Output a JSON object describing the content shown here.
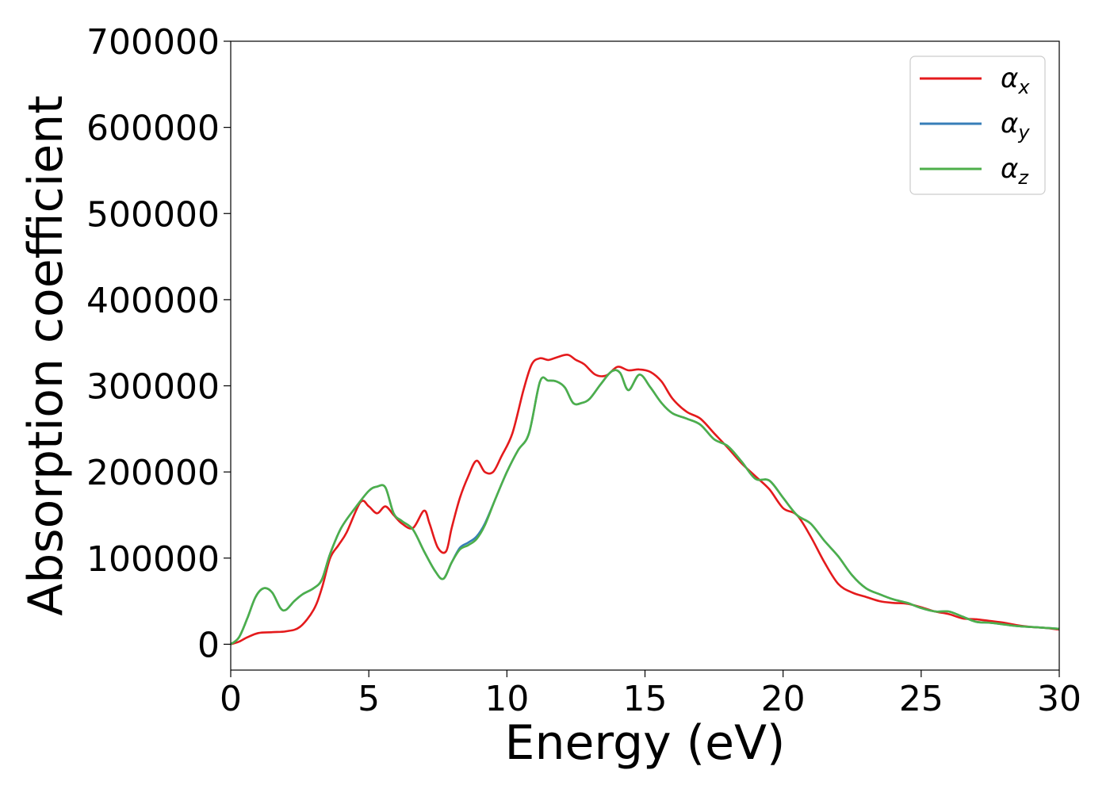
{
  "chart_data": {
    "type": "line",
    "xlabel": "Energy (eV)",
    "ylabel": "Absorption coefficient",
    "xlim": [
      0,
      30
    ],
    "ylim": [
      -30000,
      700000
    ],
    "xticks": [
      0,
      5,
      10,
      15,
      20,
      25,
      30
    ],
    "xtick_labels": [
      "0",
      "5",
      "10",
      "15",
      "20",
      "25",
      "30"
    ],
    "yticks": [
      0,
      100000,
      200000,
      300000,
      400000,
      500000,
      600000,
      700000
    ],
    "ytick_labels": [
      "0",
      "100000",
      "200000",
      "300000",
      "400000",
      "500000",
      "600000",
      "700000"
    ],
    "grid": false,
    "legend_position": "top-right",
    "series": [
      {
        "name": "α",
        "subscript": "x",
        "color": "#e41a1c",
        "x": [
          0,
          0.3,
          0.6,
          1.0,
          1.5,
          2.0,
          2.5,
          3.0,
          3.3,
          3.6,
          3.9,
          4.2,
          4.7,
          5.0,
          5.3,
          5.6,
          5.9,
          6.2,
          6.6,
          7.0,
          7.2,
          7.5,
          7.8,
          8.0,
          8.3,
          8.6,
          8.9,
          9.2,
          9.5,
          9.8,
          10.2,
          10.6,
          10.9,
          11.2,
          11.5,
          11.8,
          12.2,
          12.5,
          12.8,
          13.2,
          13.6,
          14.0,
          14.4,
          14.8,
          15.2,
          15.6,
          16.0,
          16.5,
          17.0,
          17.5,
          18.0,
          18.5,
          19.0,
          19.5,
          20.0,
          20.5,
          21.0,
          21.5,
          22.0,
          22.5,
          23.0,
          23.5,
          24.0,
          24.5,
          25.0,
          25.5,
          26.0,
          26.5,
          27.0,
          27.5,
          28.0,
          28.5,
          29.0,
          29.5,
          30.0
        ],
        "y": [
          0,
          3000,
          8000,
          13000,
          14000,
          15000,
          20000,
          40000,
          65000,
          100000,
          115000,
          130000,
          165000,
          160000,
          152000,
          160000,
          150000,
          140000,
          135000,
          155000,
          140000,
          112000,
          108000,
          135000,
          170000,
          195000,
          213000,
          200000,
          200000,
          218000,
          245000,
          295000,
          325000,
          332000,
          330000,
          333000,
          336000,
          330000,
          325000,
          313000,
          312000,
          322000,
          318000,
          319000,
          316000,
          305000,
          285000,
          270000,
          262000,
          245000,
          228000,
          210000,
          195000,
          180000,
          158000,
          150000,
          125000,
          95000,
          70000,
          60000,
          55000,
          50000,
          48000,
          47000,
          43000,
          38000,
          35000,
          30000,
          29000,
          27000,
          25000,
          22000,
          20000,
          19000,
          17000
        ]
      },
      {
        "name": "α",
        "subscript": "y",
        "color": "#377eb8",
        "x": [
          0,
          0.3,
          0.6,
          0.9,
          1.2,
          1.5,
          1.8,
          2.0,
          2.3,
          2.6,
          3.0,
          3.3,
          3.6,
          4.0,
          4.5,
          5.0,
          5.3,
          5.6,
          5.9,
          6.2,
          6.6,
          7.0,
          7.4,
          7.7,
          8.0,
          8.3,
          8.6,
          8.9,
          9.2,
          9.6,
          10.0,
          10.4,
          10.8,
          11.2,
          11.5,
          11.8,
          12.1,
          12.4,
          12.7,
          13.0,
          13.4,
          13.8,
          14.1,
          14.4,
          14.8,
          15.2,
          15.6,
          16.0,
          16.5,
          17.0,
          17.5,
          18.0,
          18.5,
          19.0,
          19.5,
          20.0,
          20.5,
          21.0,
          21.5,
          22.0,
          22.5,
          23.0,
          23.5,
          24.0,
          24.5,
          25.0,
          25.5,
          26.0,
          26.5,
          27.0,
          27.5,
          28.0,
          28.5,
          29.0,
          29.5,
          30.0
        ],
        "y": [
          0,
          8000,
          30000,
          55000,
          65000,
          60000,
          42000,
          40000,
          50000,
          58000,
          65000,
          75000,
          105000,
          135000,
          158000,
          178000,
          183000,
          182000,
          152000,
          143000,
          133000,
          108000,
          85000,
          76000,
          95000,
          112000,
          118000,
          125000,
          140000,
          170000,
          200000,
          225000,
          245000,
          305000,
          306000,
          305000,
          298000,
          280000,
          280000,
          285000,
          302000,
          317000,
          315000,
          295000,
          313000,
          298000,
          280000,
          268000,
          262000,
          255000,
          238000,
          230000,
          212000,
          192000,
          190000,
          170000,
          150000,
          140000,
          120000,
          102000,
          80000,
          65000,
          58000,
          52000,
          48000,
          42000,
          38000,
          38000,
          32000,
          26000,
          25000,
          23000,
          21000,
          20000,
          19000,
          18000
        ]
      },
      {
        "name": "α",
        "subscript": "z",
        "color": "#4daf4a",
        "x": [
          0,
          0.3,
          0.6,
          0.9,
          1.2,
          1.5,
          1.8,
          2.0,
          2.3,
          2.6,
          3.0,
          3.3,
          3.6,
          4.0,
          4.5,
          5.0,
          5.3,
          5.6,
          5.9,
          6.2,
          6.6,
          7.0,
          7.4,
          7.7,
          8.0,
          8.3,
          8.6,
          8.9,
          9.2,
          9.6,
          10.0,
          10.4,
          10.8,
          11.2,
          11.5,
          11.8,
          12.1,
          12.4,
          12.7,
          13.0,
          13.4,
          13.8,
          14.1,
          14.4,
          14.8,
          15.2,
          15.6,
          16.0,
          16.5,
          17.0,
          17.5,
          18.0,
          18.5,
          19.0,
          19.5,
          20.0,
          20.5,
          21.0,
          21.5,
          22.0,
          22.5,
          23.0,
          23.5,
          24.0,
          24.5,
          25.0,
          25.5,
          26.0,
          26.5,
          27.0,
          27.5,
          28.0,
          28.5,
          29.0,
          29.5,
          30.0
        ],
        "y": [
          0,
          8000,
          30000,
          55000,
          65000,
          60000,
          42000,
          40000,
          50000,
          58000,
          65000,
          75000,
          105000,
          135000,
          158000,
          178000,
          183000,
          182000,
          152000,
          143000,
          133000,
          108000,
          85000,
          76000,
          95000,
          110000,
          115000,
          122000,
          138000,
          170000,
          200000,
          225000,
          245000,
          305000,
          306000,
          305000,
          298000,
          280000,
          280000,
          285000,
          302000,
          317000,
          315000,
          295000,
          313000,
          298000,
          280000,
          268000,
          262000,
          255000,
          238000,
          230000,
          212000,
          192000,
          190000,
          170000,
          150000,
          140000,
          120000,
          102000,
          80000,
          65000,
          58000,
          52000,
          48000,
          42000,
          38000,
          38000,
          32000,
          26000,
          25000,
          23000,
          21000,
          20000,
          19000,
          18000
        ]
      }
    ]
  }
}
